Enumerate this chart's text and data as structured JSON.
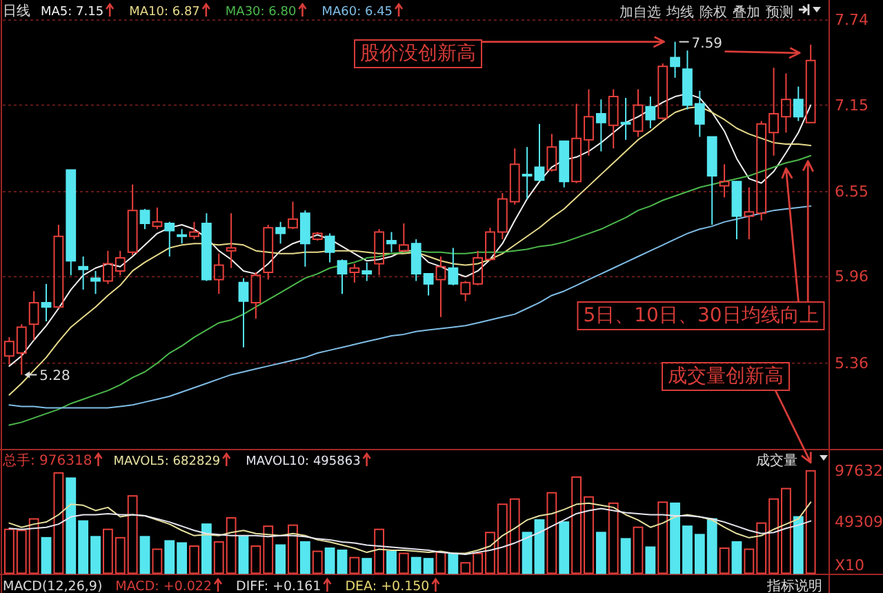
{
  "chart_data": [
    {
      "type": "candlestick",
      "title": "日线",
      "categories": [
        null,
        null,
        null,
        null,
        null,
        null,
        null,
        null,
        null,
        null,
        null,
        null,
        null,
        null,
        null,
        null,
        null,
        null,
        null,
        null,
        null,
        null,
        null,
        null,
        null,
        null,
        null,
        null,
        null,
        null,
        null,
        null,
        null,
        null,
        null,
        null,
        null,
        null,
        null,
        null,
        null,
        null,
        null,
        null,
        null,
        null,
        null,
        null,
        null,
        null,
        null,
        null,
        null,
        null,
        null,
        null,
        null,
        null,
        null,
        null,
        null,
        null,
        null,
        null,
        null,
        null
      ],
      "ohlc": [
        [
          5.41,
          5.54,
          5.35,
          5.51
        ],
        [
          5.43,
          5.63,
          5.28,
          5.61
        ],
        [
          5.63,
          5.86,
          5.52,
          5.78
        ],
        [
          5.78,
          5.91,
          5.65,
          5.75
        ],
        [
          5.75,
          6.32,
          5.74,
          6.24
        ],
        [
          6.7,
          6.7,
          5.97,
          6.07
        ],
        [
          6.03,
          6.1,
          5.87,
          6.01
        ],
        [
          5.95,
          6.0,
          5.84,
          5.93
        ],
        [
          5.93,
          6.14,
          5.91,
          6.05
        ],
        [
          6.0,
          6.14,
          5.97,
          6.09
        ],
        [
          6.13,
          6.6,
          6.11,
          6.42
        ],
        [
          6.42,
          6.43,
          6.29,
          6.33
        ],
        [
          6.31,
          6.44,
          6.29,
          6.34
        ],
        [
          6.33,
          6.34,
          6.1,
          6.28
        ],
        [
          6.25,
          6.29,
          6.19,
          6.24
        ],
        [
          6.24,
          6.34,
          6.22,
          6.27
        ],
        [
          6.33,
          6.4,
          5.93,
          5.94
        ],
        [
          5.94,
          6.12,
          5.84,
          6.04
        ],
        [
          6.14,
          6.4,
          6.02,
          6.16
        ],
        [
          5.92,
          5.95,
          5.47,
          5.79
        ],
        [
          5.78,
          5.99,
          5.67,
          5.97
        ],
        [
          5.99,
          6.32,
          5.94,
          6.3
        ],
        [
          6.3,
          6.34,
          6.19,
          6.26
        ],
        [
          6.3,
          6.48,
          6.29,
          6.36
        ],
        [
          6.4,
          6.42,
          6.03,
          6.19
        ],
        [
          6.22,
          6.27,
          6.21,
          6.26
        ],
        [
          6.24,
          6.26,
          6.06,
          6.13
        ],
        [
          6.07,
          6.08,
          5.84,
          5.98
        ],
        [
          5.99,
          6.05,
          5.92,
          6.02
        ],
        [
          6.0,
          6.06,
          5.93,
          5.98
        ],
        [
          6.05,
          6.29,
          5.97,
          6.27
        ],
        [
          6.21,
          6.27,
          6.13,
          6.19
        ],
        [
          6.14,
          6.33,
          6.13,
          6.18
        ],
        [
          6.19,
          6.22,
          5.93,
          5.98
        ],
        [
          5.98,
          5.98,
          5.83,
          5.91
        ],
        [
          5.94,
          6.1,
          5.68,
          6.03
        ],
        [
          6.02,
          6.16,
          5.9,
          5.91
        ],
        [
          5.84,
          5.93,
          5.79,
          5.92
        ],
        [
          5.91,
          6.14,
          5.9,
          6.09
        ],
        [
          6.08,
          6.3,
          6.07,
          6.27
        ],
        [
          6.27,
          6.54,
          6.22,
          6.5
        ],
        [
          6.48,
          6.85,
          6.46,
          6.74
        ],
        [
          6.67,
          6.86,
          6.5,
          6.66
        ],
        [
          6.72,
          7.02,
          6.62,
          6.63
        ],
        [
          6.7,
          6.95,
          6.69,
          6.86
        ],
        [
          6.9,
          6.9,
          6.58,
          6.62
        ],
        [
          6.62,
          7.16,
          6.61,
          6.92
        ],
        [
          6.91,
          7.26,
          6.8,
          7.07
        ],
        [
          7.09,
          7.19,
          6.83,
          7.03
        ],
        [
          7.01,
          7.26,
          6.85,
          7.21
        ],
        [
          7.03,
          7.2,
          6.91,
          7.02
        ],
        [
          6.97,
          7.26,
          6.93,
          7.15
        ],
        [
          7.14,
          7.21,
          6.99,
          7.05
        ],
        [
          7.06,
          7.44,
          7.05,
          7.42
        ],
        [
          7.48,
          7.59,
          7.34,
          7.42
        ],
        [
          7.4,
          7.53,
          7.12,
          7.15
        ],
        [
          7.16,
          7.25,
          6.93,
          7.02
        ],
        [
          6.93,
          6.93,
          6.32,
          6.66
        ],
        [
          6.59,
          6.74,
          6.51,
          6.62
        ],
        [
          6.62,
          6.62,
          6.22,
          6.38
        ],
        [
          6.38,
          6.58,
          6.22,
          6.41
        ],
        [
          6.4,
          7.04,
          6.35,
          7.02
        ],
        [
          6.96,
          7.41,
          6.8,
          7.09
        ],
        [
          7.07,
          7.37,
          6.96,
          7.19
        ],
        [
          7.19,
          7.28,
          7.04,
          7.07
        ],
        [
          7.03,
          7.57,
          7.03,
          7.46
        ]
      ],
      "colors": [
        "#e8403c",
        "#e8403c",
        "#e8403c",
        "#56e6f0",
        "#e8403c",
        "#56e6f0",
        "#56e6f0",
        "#56e6f0",
        "#e8403c",
        "#e8403c",
        "#e8403c",
        "#56e6f0",
        "#e8403c",
        "#56e6f0",
        "#56e6f0",
        "#e8403c",
        "#56e6f0",
        "#e8403c",
        "#e8403c",
        "#56e6f0",
        "#e8403c",
        "#e8403c",
        "#56e6f0",
        "#e8403c",
        "#56e6f0",
        "#e8403c",
        "#56e6f0",
        "#56e6f0",
        "#e8403c",
        "#56e6f0",
        "#e8403c",
        "#56e6f0",
        "#e8403c",
        "#56e6f0",
        "#56e6f0",
        "#e8403c",
        "#56e6f0",
        "#e8403c",
        "#e8403c",
        "#e8403c",
        "#e8403c",
        "#e8403c",
        "#56e6f0",
        "#56e6f0",
        "#e8403c",
        "#56e6f0",
        "#e8403c",
        "#e8403c",
        "#56e6f0",
        "#e8403c",
        "#56e6f0",
        "#e8403c",
        "#56e6f0",
        "#e8403c",
        "#56e6f0",
        "#56e6f0",
        "#56e6f0",
        "#56e6f0",
        "#e8403c",
        "#56e6f0",
        "#e8403c",
        "#e8403c",
        "#e8403c",
        "#e8403c",
        "#56e6f0",
        "#e8403c"
      ],
      "series": [
        {
          "type": "line",
          "name": "MA5: 7.15",
          "color": "#f0f0f0",
          "values": [
            5.34,
            5.41,
            5.52,
            5.62,
            5.74,
            5.87,
            5.97,
            6.02,
            6.05,
            6.03,
            6.1,
            6.18,
            6.26,
            6.3,
            6.32,
            6.29,
            6.23,
            6.14,
            6.08,
            6.0,
            5.98,
            6.05,
            6.14,
            6.19,
            6.22,
            6.25,
            6.22,
            6.17,
            6.12,
            6.07,
            6.08,
            6.1,
            6.14,
            6.14,
            6.06,
            6.03,
            5.99,
            5.96,
            6.0,
            6.08,
            6.19,
            6.35,
            6.5,
            6.62,
            6.72,
            6.77,
            6.79,
            6.83,
            6.89,
            6.96,
            7.03,
            7.07,
            7.12,
            7.17,
            7.21,
            7.23,
            7.2,
            7.1,
            6.97,
            6.78,
            6.64,
            6.61,
            6.69,
            6.82,
            6.96,
            7.15
          ]
        },
        {
          "type": "line",
          "name": "MA10: 6.87",
          "color": "#e6d98a",
          "values": [
            5.14,
            5.22,
            5.31,
            5.4,
            5.51,
            5.61,
            5.68,
            5.75,
            5.83,
            5.9,
            6.0,
            6.06,
            6.11,
            6.16,
            6.18,
            6.19,
            6.19,
            6.18,
            6.19,
            6.18,
            6.14,
            6.13,
            6.12,
            6.12,
            6.13,
            6.13,
            6.14,
            6.14,
            6.14,
            6.13,
            6.12,
            6.12,
            6.12,
            6.13,
            6.1,
            6.07,
            6.05,
            6.04,
            6.05,
            6.08,
            6.12,
            6.18,
            6.24,
            6.3,
            6.37,
            6.43,
            6.51,
            6.59,
            6.67,
            6.75,
            6.83,
            6.91,
            6.97,
            7.04,
            7.1,
            7.13,
            7.14,
            7.1,
            7.05,
            6.99,
            6.95,
            6.92,
            6.89,
            6.88,
            6.88,
            6.87
          ]
        },
        {
          "type": "line",
          "name": "MA30: 6.80",
          "color": "#4cb84c",
          "values": [
            4.93,
            4.95,
            4.98,
            5.01,
            5.04,
            5.08,
            5.11,
            5.14,
            5.17,
            5.21,
            5.26,
            5.3,
            5.36,
            5.43,
            5.48,
            5.54,
            5.59,
            5.64,
            5.66,
            5.7,
            5.75,
            5.8,
            5.85,
            5.9,
            5.95,
            5.98,
            6.02,
            6.04,
            6.06,
            6.09,
            6.1,
            6.12,
            6.13,
            6.14,
            6.13,
            6.13,
            6.12,
            6.12,
            6.13,
            6.13,
            6.13,
            6.14,
            6.15,
            6.17,
            6.18,
            6.2,
            6.23,
            6.26,
            6.29,
            6.33,
            6.37,
            6.42,
            6.45,
            6.49,
            6.52,
            6.55,
            6.58,
            6.6,
            6.62,
            6.64,
            6.66,
            6.69,
            6.72,
            6.75,
            6.77,
            6.8
          ]
        },
        {
          "type": "line",
          "name": "MA60: 6.45",
          "color": "#7fbde6",
          "values": [
            5.07,
            5.06,
            5.06,
            5.05,
            5.05,
            5.05,
            5.05,
            5.05,
            5.05,
            5.06,
            5.07,
            5.09,
            5.11,
            5.13,
            5.16,
            5.19,
            5.22,
            5.25,
            5.28,
            5.3,
            5.32,
            5.34,
            5.36,
            5.38,
            5.4,
            5.43,
            5.45,
            5.47,
            5.49,
            5.51,
            5.53,
            5.55,
            5.56,
            5.58,
            5.59,
            5.6,
            5.61,
            5.62,
            5.64,
            5.66,
            5.68,
            5.7,
            5.74,
            5.78,
            5.83,
            5.86,
            5.9,
            5.94,
            5.98,
            6.02,
            6.06,
            6.1,
            6.14,
            6.18,
            6.22,
            6.26,
            6.29,
            6.31,
            6.34,
            6.36,
            6.38,
            6.4,
            6.42,
            6.43,
            6.44,
            6.45
          ]
        }
      ],
      "ylim": [
        4.77,
        7.88
      ],
      "yticks": [
        5.36,
        5.96,
        6.55,
        7.15,
        7.74
      ],
      "grid": "y",
      "legend": "top left",
      "tick_labels": "y",
      "annotations": [
        "7.59",
        "5.28",
        "股价没创新高",
        "5日、10日、30日均线向上",
        "成交量创新高",
        "加自选",
        "均线",
        "除权",
        "叠加",
        "预测"
      ]
    },
    {
      "type": "bar",
      "categories": [
        null,
        null,
        null,
        null,
        null,
        null,
        null,
        null,
        null,
        null,
        null,
        null,
        null,
        null,
        null,
        null,
        null,
        null,
        null,
        null,
        null,
        null,
        null,
        null,
        null,
        null,
        null,
        null,
        null,
        null,
        null,
        null,
        null,
        null,
        null,
        null,
        null,
        null,
        null,
        null,
        null,
        null,
        null,
        null,
        null,
        null,
        null,
        null,
        null,
        null,
        null,
        null,
        null,
        null,
        null,
        null,
        null,
        null,
        null,
        null,
        null,
        null,
        null,
        null,
        null,
        null
      ],
      "series": [
        {
          "type": "bar",
          "colors": [
            "#e8403c",
            "#e8403c",
            "#e8403c",
            "#56e6f0",
            "#e8403c",
            "#56e6f0",
            "#56e6f0",
            "#56e6f0",
            "#e8403c",
            "#e8403c",
            "#e8403c",
            "#56e6f0",
            "#e8403c",
            "#56e6f0",
            "#56e6f0",
            "#e8403c",
            "#56e6f0",
            "#e8403c",
            "#e8403c",
            "#56e6f0",
            "#e8403c",
            "#e8403c",
            "#56e6f0",
            "#e8403c",
            "#56e6f0",
            "#e8403c",
            "#56e6f0",
            "#56e6f0",
            "#e8403c",
            "#56e6f0",
            "#e8403c",
            "#56e6f0",
            "#e8403c",
            "#56e6f0",
            "#56e6f0",
            "#e8403c",
            "#56e6f0",
            "#e8403c",
            "#e8403c",
            "#e8403c",
            "#e8403c",
            "#e8403c",
            "#56e6f0",
            "#56e6f0",
            "#e8403c",
            "#56e6f0",
            "#e8403c",
            "#e8403c",
            "#56e6f0",
            "#e8403c",
            "#56e6f0",
            "#e8403c",
            "#56e6f0",
            "#e8403c",
            "#56e6f0",
            "#56e6f0",
            "#56e6f0",
            "#56e6f0",
            "#e8403c",
            "#56e6f0",
            "#e8403c",
            "#e8403c",
            "#e8403c",
            "#e8403c",
            "#56e6f0",
            "#e8403c"
          ],
          "values": [
            42000,
            41000,
            52000,
            34000,
            96000,
            91000,
            50000,
            35000,
            42000,
            34000,
            74000,
            35000,
            23000,
            31000,
            29000,
            26000,
            47000,
            30000,
            53000,
            35000,
            26000,
            45000,
            27000,
            46000,
            30000,
            21000,
            24000,
            22000,
            15000,
            14000,
            42000,
            21000,
            19000,
            15000,
            14000,
            20000,
            19000,
            10000,
            19000,
            39000,
            66000,
            71000,
            39000,
            51000,
            77000,
            49000,
            92000,
            73000,
            39000,
            67000,
            33000,
            44000,
            25000,
            68000,
            67000,
            45000,
            37000,
            52000,
            24000,
            30000,
            23000,
            48000,
            71000,
            81000,
            54000,
            98000
          ]
        },
        {
          "type": "line",
          "name": "MAVOL5: 682829",
          "color": "#e6e0a0",
          "values": [
            48000,
            44000,
            47000,
            49000,
            56000,
            66000,
            65000,
            60000,
            63000,
            54000,
            56000,
            55000,
            51000,
            47000,
            41000,
            36000,
            37000,
            36000,
            39000,
            41000,
            38000,
            37000,
            36000,
            38000,
            36000,
            32000,
            30000,
            27000,
            24000,
            20000,
            23000,
            22000,
            22000,
            21000,
            20000,
            21000,
            19000,
            19000,
            22000,
            26000,
            36000,
            43000,
            51000,
            55000,
            57000,
            61000,
            66000,
            67000,
            65000,
            63000,
            56000,
            51000,
            44000,
            48000,
            54000,
            56000,
            54000,
            51000,
            44000,
            38000,
            34000,
            36000,
            42000,
            47000,
            52000,
            68000
          ]
        },
        {
          "type": "line",
          "name": "MAVOL10: 495863",
          "color": "#e4e4ee",
          "values": [
            43000,
            42000,
            43000,
            44000,
            47000,
            54000,
            56000,
            56000,
            57000,
            56000,
            56000,
            55000,
            52000,
            49000,
            45000,
            41000,
            38000,
            37000,
            36000,
            36000,
            36000,
            35000,
            36000,
            36000,
            35000,
            33000,
            32000,
            30000,
            29000,
            27000,
            26000,
            25000,
            24000,
            23000,
            22000,
            20000,
            19000,
            18000,
            20000,
            22000,
            25000,
            29000,
            34000,
            39000,
            45000,
            51000,
            57000,
            60000,
            62000,
            60000,
            58000,
            57000,
            56000,
            56000,
            55000,
            55000,
            54000,
            52000,
            49000,
            45000,
            41000,
            38000,
            39000,
            43000,
            46000,
            50000
          ]
        }
      ],
      "ylim": [
        0,
        117000
      ],
      "yticks": [
        49309,
        97632
      ],
      "ylabel": "X10",
      "legend": "top left",
      "tick_labels": "y",
      "annotations": [
        "总手: 976318",
        "成交量",
        "MACD(12,26,9)",
        "MACD: +0.022",
        "DIFF: +0.161",
        "DEA: +0.150",
        "指标说明"
      ]
    }
  ]
}
